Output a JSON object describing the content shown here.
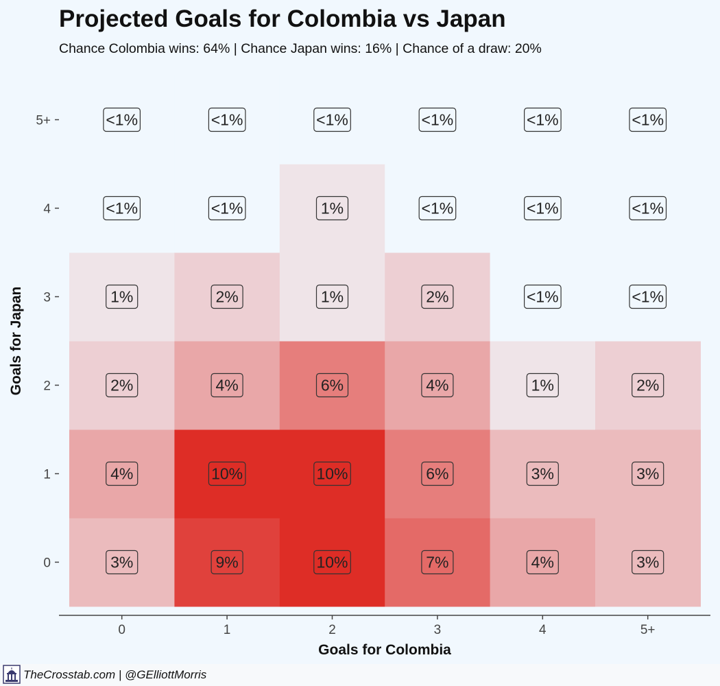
{
  "title": "Projected Goals for Colombia vs Japan",
  "subtitle": "Chance Colombia wins: 64% | Chance Japan wins: 16% | Chance of a draw: 20%",
  "footer": "TheCrosstab.com | @GElliottMorris",
  "colors": {
    "background": "#f1f8fe",
    "low": "#f1f8fe",
    "high": "#de2d26",
    "label_border": "#333333"
  },
  "chart_data": {
    "type": "heatmap",
    "xlabel": "Goals for Colombia",
    "ylabel": "Goals for Japan",
    "x_categories": [
      "0",
      "1",
      "2",
      "3",
      "4",
      "5+"
    ],
    "y_categories": [
      "0",
      "1",
      "2",
      "3",
      "4",
      "5+"
    ],
    "cells": [
      {
        "x": "0",
        "y": "0",
        "value": 3,
        "label": "3%"
      },
      {
        "x": "1",
        "y": "0",
        "value": 9,
        "label": "9%"
      },
      {
        "x": "2",
        "y": "0",
        "value": 10,
        "label": "10%"
      },
      {
        "x": "3",
        "y": "0",
        "value": 7,
        "label": "7%"
      },
      {
        "x": "4",
        "y": "0",
        "value": 4,
        "label": "4%"
      },
      {
        "x": "5+",
        "y": "0",
        "value": 3,
        "label": "3%"
      },
      {
        "x": "0",
        "y": "1",
        "value": 4,
        "label": "4%"
      },
      {
        "x": "1",
        "y": "1",
        "value": 10,
        "label": "10%"
      },
      {
        "x": "2",
        "y": "1",
        "value": 10,
        "label": "10%"
      },
      {
        "x": "3",
        "y": "1",
        "value": 6,
        "label": "6%"
      },
      {
        "x": "4",
        "y": "1",
        "value": 3,
        "label": "3%"
      },
      {
        "x": "5+",
        "y": "1",
        "value": 3,
        "label": "3%"
      },
      {
        "x": "0",
        "y": "2",
        "value": 2,
        "label": "2%"
      },
      {
        "x": "1",
        "y": "2",
        "value": 4,
        "label": "4%"
      },
      {
        "x": "2",
        "y": "2",
        "value": 6,
        "label": "6%"
      },
      {
        "x": "3",
        "y": "2",
        "value": 4,
        "label": "4%"
      },
      {
        "x": "4",
        "y": "2",
        "value": 1,
        "label": "1%"
      },
      {
        "x": "5+",
        "y": "2",
        "value": 2,
        "label": "2%"
      },
      {
        "x": "0",
        "y": "3",
        "value": 1,
        "label": "1%"
      },
      {
        "x": "1",
        "y": "3",
        "value": 2,
        "label": "2%"
      },
      {
        "x": "2",
        "y": "3",
        "value": 1,
        "label": "1%"
      },
      {
        "x": "3",
        "y": "3",
        "value": 2,
        "label": "2%"
      },
      {
        "x": "4",
        "y": "3",
        "value": 0,
        "label": "<1%"
      },
      {
        "x": "5+",
        "y": "3",
        "value": 0,
        "label": "<1%"
      },
      {
        "x": "0",
        "y": "4",
        "value": 0,
        "label": "<1%"
      },
      {
        "x": "1",
        "y": "4",
        "value": 0,
        "label": "<1%"
      },
      {
        "x": "2",
        "y": "4",
        "value": 1,
        "label": "1%"
      },
      {
        "x": "3",
        "y": "4",
        "value": 0,
        "label": "<1%"
      },
      {
        "x": "4",
        "y": "4",
        "value": 0,
        "label": "<1%"
      },
      {
        "x": "5+",
        "y": "4",
        "value": 0,
        "label": "<1%"
      },
      {
        "x": "0",
        "y": "5+",
        "value": 0,
        "label": "<1%"
      },
      {
        "x": "1",
        "y": "5+",
        "value": 0,
        "label": "<1%"
      },
      {
        "x": "2",
        "y": "5+",
        "value": 0,
        "label": "<1%"
      },
      {
        "x": "3",
        "y": "5+",
        "value": 0,
        "label": "<1%"
      },
      {
        "x": "4",
        "y": "5+",
        "value": 0,
        "label": "<1%"
      },
      {
        "x": "5+",
        "y": "5+",
        "value": 0,
        "label": "<1%"
      }
    ],
    "value_range": [
      0,
      10
    ]
  }
}
